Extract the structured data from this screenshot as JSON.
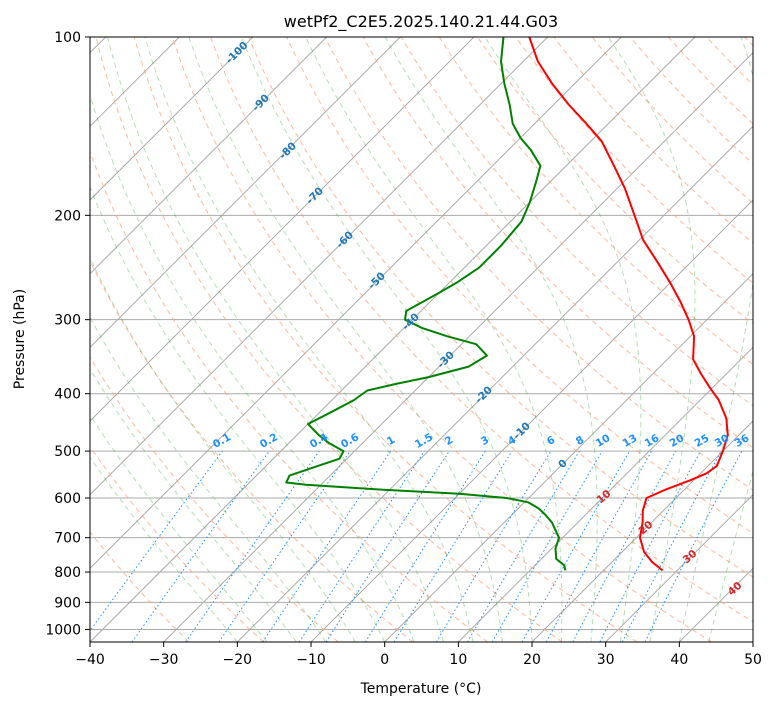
{
  "chart_data": {
    "type": "line",
    "subtype": "skew-t log-p diagram",
    "title": "wetPf2_C2E5.2025.140.21.44.G03",
    "xlabel": "Temperature (°C)",
    "ylabel": "Pressure (hPa)",
    "xlim": [
      -40,
      50
    ],
    "ylim": [
      1050,
      100
    ],
    "y_scale": "log",
    "grid": true,
    "x_ticks": [
      "−40",
      "−30",
      "−20",
      "−10",
      "0",
      "10",
      "20",
      "30",
      "40",
      "50"
    ],
    "y_ticks": [
      "100",
      "200",
      "300",
      "400",
      "500",
      "600",
      "700",
      "800",
      "900",
      "1000"
    ],
    "colors": {
      "temperature": "#ff0000",
      "dewpoint": "#008000",
      "dry_adiabat_labels": "#1f77b4",
      "mixing_ratio_labels": "#1e90ff",
      "moist_adiabat_labels": "#d62728"
    },
    "series": [
      {
        "color": "#ff0000",
        "points": [
          [
            795,
            28.0
          ],
          [
            770,
            25.5
          ],
          [
            740,
            23.0
          ],
          [
            700,
            20.5
          ],
          [
            660,
            18.8
          ],
          [
            630,
            17.2
          ],
          [
            600,
            16.0
          ],
          [
            580,
            17.5
          ],
          [
            560,
            19.5
          ],
          [
            545,
            20.8
          ],
          [
            530,
            21.2
          ],
          [
            500,
            20.0
          ],
          [
            470,
            18.5
          ],
          [
            440,
            16.0
          ],
          [
            410,
            12.5
          ],
          [
            390,
            9.5
          ],
          [
            370,
            6.5
          ],
          [
            350,
            3.5
          ],
          [
            320,
            0.5
          ],
          [
            300,
            -2.5
          ],
          [
            280,
            -6.0
          ],
          [
            260,
            -10.0
          ],
          [
            240,
            -14.5
          ],
          [
            220,
            -19.5
          ],
          [
            200,
            -24.0
          ],
          [
            180,
            -29.0
          ],
          [
            165,
            -33.5
          ],
          [
            150,
            -38.5
          ],
          [
            140,
            -43.0
          ],
          [
            130,
            -48.0
          ],
          [
            120,
            -53.0
          ],
          [
            110,
            -58.0
          ],
          [
            100,
            -62.5
          ]
        ]
      },
      {
        "color": "#008000",
        "points": [
          [
            795,
            14.8
          ],
          [
            780,
            14.0
          ],
          [
            760,
            12.0
          ],
          [
            730,
            10.5
          ],
          [
            700,
            9.5
          ],
          [
            680,
            8.0
          ],
          [
            660,
            6.5
          ],
          [
            640,
            4.5
          ],
          [
            625,
            2.8
          ],
          [
            610,
            0.5
          ],
          [
            600,
            -3.0
          ],
          [
            590,
            -10.0
          ],
          [
            580,
            -22.0
          ],
          [
            570,
            -32.0
          ],
          [
            565,
            -35.0
          ],
          [
            550,
            -35.5
          ],
          [
            530,
            -33.0
          ],
          [
            515,
            -31.0
          ],
          [
            500,
            -31.5
          ],
          [
            485,
            -34.5
          ],
          [
            470,
            -37.0
          ],
          [
            460,
            -38.5
          ],
          [
            450,
            -40.0
          ],
          [
            430,
            -38.5
          ],
          [
            410,
            -37.0
          ],
          [
            395,
            -36.5
          ],
          [
            385,
            -33.5
          ],
          [
            375,
            -30.0
          ],
          [
            360,
            -26.0
          ],
          [
            345,
            -25.0
          ],
          [
            330,
            -28.0
          ],
          [
            320,
            -33.0
          ],
          [
            310,
            -37.5
          ],
          [
            300,
            -41.0
          ],
          [
            290,
            -42.0
          ],
          [
            280,
            -41.0
          ],
          [
            270,
            -40.0
          ],
          [
            260,
            -39.0
          ],
          [
            245,
            -38.0
          ],
          [
            225,
            -38.0
          ],
          [
            205,
            -38.5
          ],
          [
            190,
            -40.0
          ],
          [
            175,
            -42.0
          ],
          [
            165,
            -43.5
          ],
          [
            155,
            -47.0
          ],
          [
            148,
            -50.0
          ],
          [
            140,
            -53.0
          ],
          [
            130,
            -56.0
          ],
          [
            120,
            -59.5
          ],
          [
            110,
            -63.0
          ],
          [
            100,
            -66.0
          ]
        ]
      }
    ],
    "dry_adiabat_labels": [
      "-100",
      "-90",
      "-80",
      "-70",
      "-60",
      "-50",
      "-40",
      "-30",
      "-20",
      "-10",
      "0"
    ],
    "mixing_ratio_labels": [
      "0.1",
      "0.2",
      "0.4",
      "0.6",
      "1",
      "1.5",
      "2",
      "3",
      "4",
      "6",
      "8",
      "10",
      "13",
      "16",
      "20",
      "25",
      "30",
      "36"
    ],
    "moist_adiabat_labels": [
      "10",
      "20",
      "30",
      "40"
    ]
  }
}
